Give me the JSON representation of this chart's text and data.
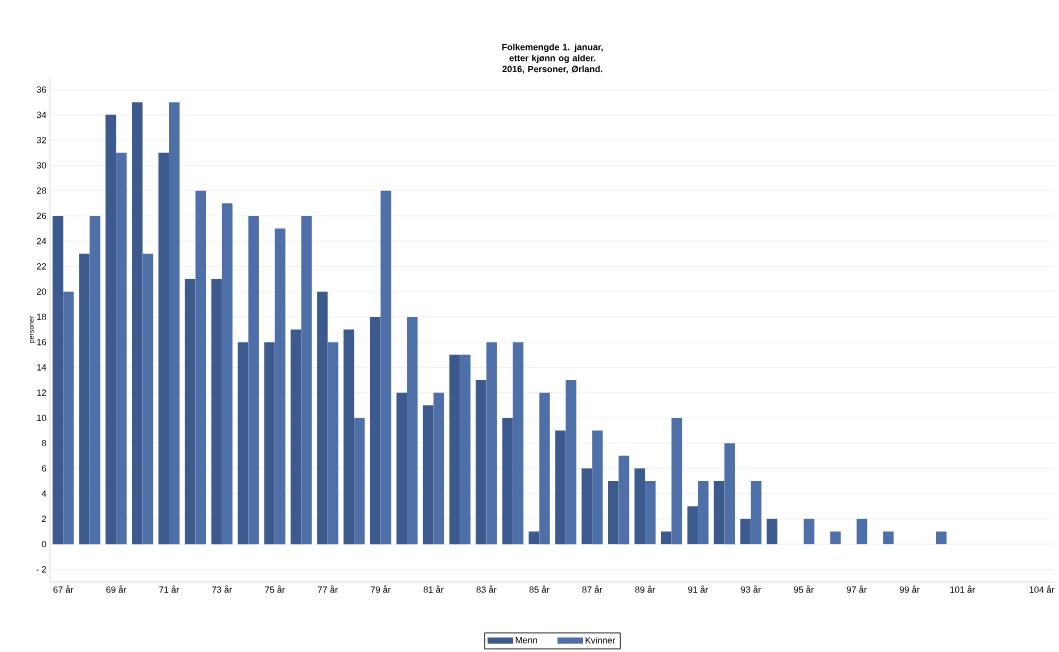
{
  "chart_data": {
    "type": "bar",
    "title": "Folkemengde 1. januar, etter kjønn og alder.",
    "subtitle": "2016, Personer, Ørland.",
    "ylabel": "personer",
    "categories": [
      "67 år",
      null,
      "69 år",
      null,
      "71 år",
      null,
      "73 år",
      null,
      "75 år",
      null,
      "77 år",
      null,
      "79 år",
      null,
      "81 år",
      null,
      "83 år",
      null,
      "85 år",
      null,
      "87 år",
      null,
      "89 år",
      null,
      "91 år",
      null,
      "93 år",
      null,
      "95 år",
      null,
      "97 år",
      null,
      "99 år",
      null,
      "101 år",
      null,
      null,
      "104 år"
    ],
    "series": [
      {
        "name": "Menn",
        "color": "#3c5a8e",
        "values": [
          26,
          23,
          34,
          35,
          31,
          21,
          21,
          16,
          16,
          17,
          20,
          17,
          18,
          12,
          11,
          15,
          13,
          10,
          1,
          9,
          6,
          5,
          6,
          1,
          3,
          5,
          2,
          2,
          0,
          0,
          0,
          0,
          0,
          0,
          0,
          0,
          0,
          0
        ]
      },
      {
        "name": "Kvinner",
        "color": "#4f6fa8",
        "values": [
          20,
          26,
          31,
          23,
          35,
          28,
          27,
          26,
          25,
          26,
          16,
          10,
          28,
          18,
          12,
          15,
          16,
          16,
          12,
          13,
          9,
          7,
          5,
          10,
          5,
          8,
          5,
          0,
          2,
          1,
          2,
          1,
          0,
          1,
          0,
          0,
          0,
          0
        ]
      }
    ],
    "ylim": [
      -3,
      37
    ],
    "yticks": [
      {
        "value": -2,
        "label": "- 2"
      },
      0,
      2,
      4,
      6,
      8,
      10,
      12,
      14,
      16,
      18,
      20,
      22,
      24,
      26,
      28,
      30,
      32,
      34,
      36
    ],
    "grid": "y",
    "legend": "bottom"
  }
}
